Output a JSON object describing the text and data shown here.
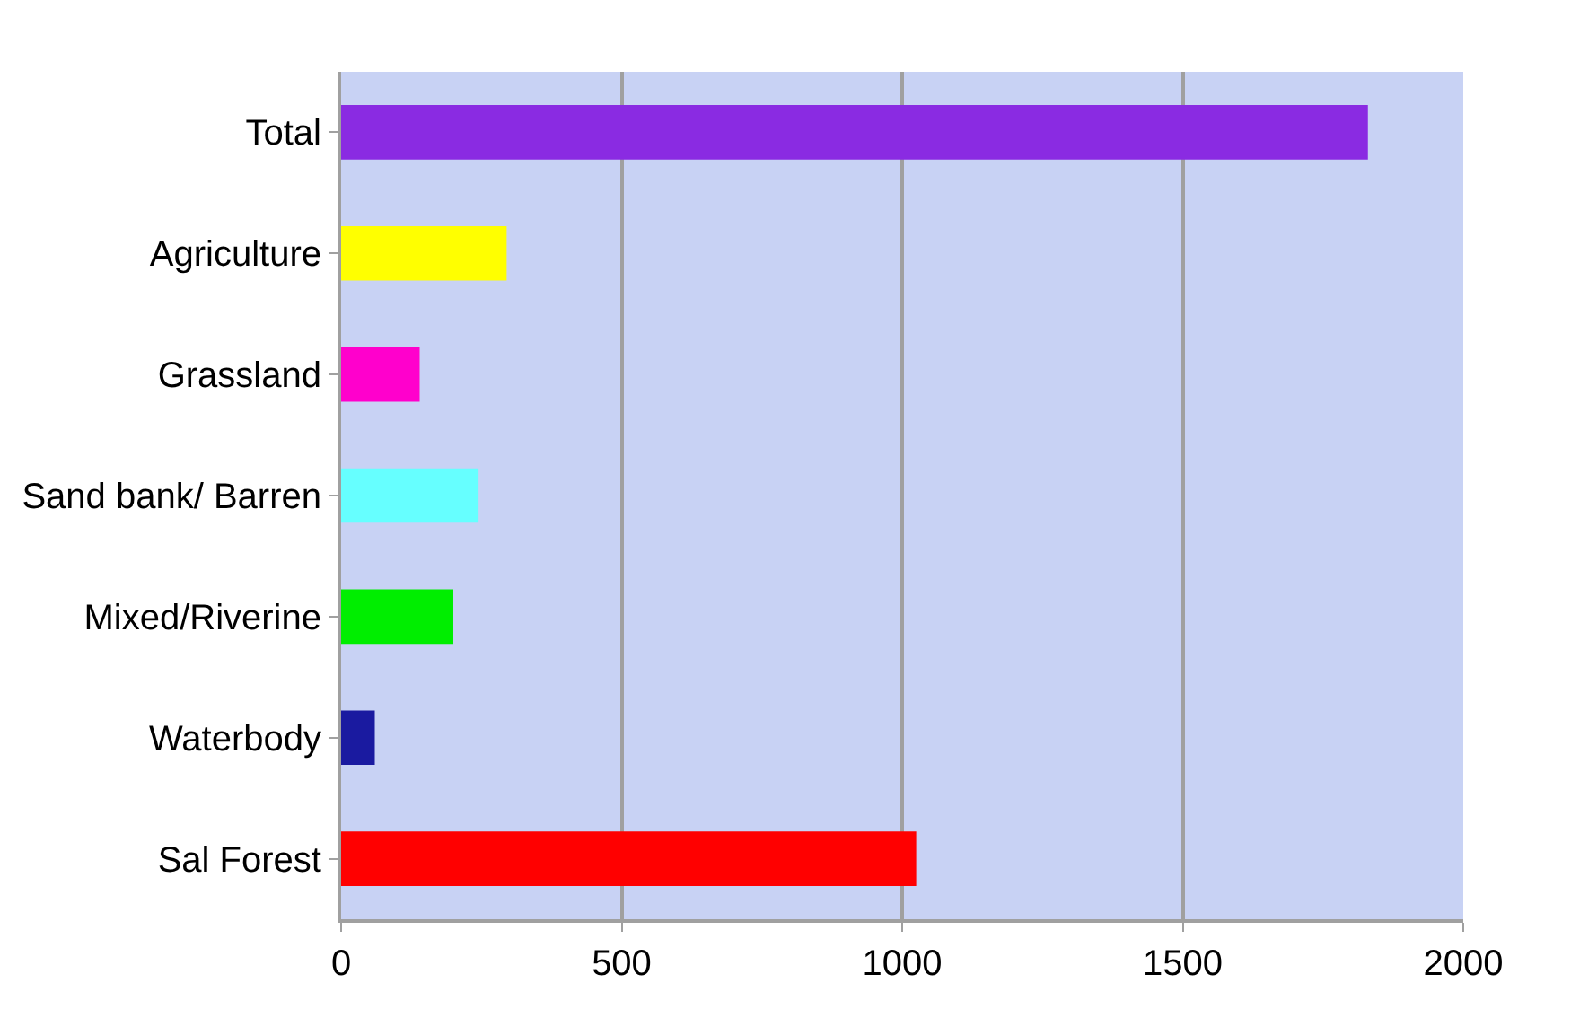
{
  "chart_data": {
    "type": "bar",
    "orientation": "horizontal",
    "categories": [
      "Total",
      "Agriculture",
      "Grassland",
      "Sand bank/ Barren",
      "Mixed/Riverine",
      "Waterbody",
      "Sal Forest"
    ],
    "values": [
      1830,
      295,
      140,
      245,
      200,
      60,
      1025
    ],
    "colors": [
      "#8a2be2",
      "#ffff00",
      "#ff00cc",
      "#66ffff",
      "#00ee00",
      "#1a1aa0",
      "#ff0000"
    ],
    "xlim": [
      0,
      2000
    ],
    "xticks": [
      0,
      500,
      1000,
      1500,
      2000
    ],
    "grid": "x"
  }
}
